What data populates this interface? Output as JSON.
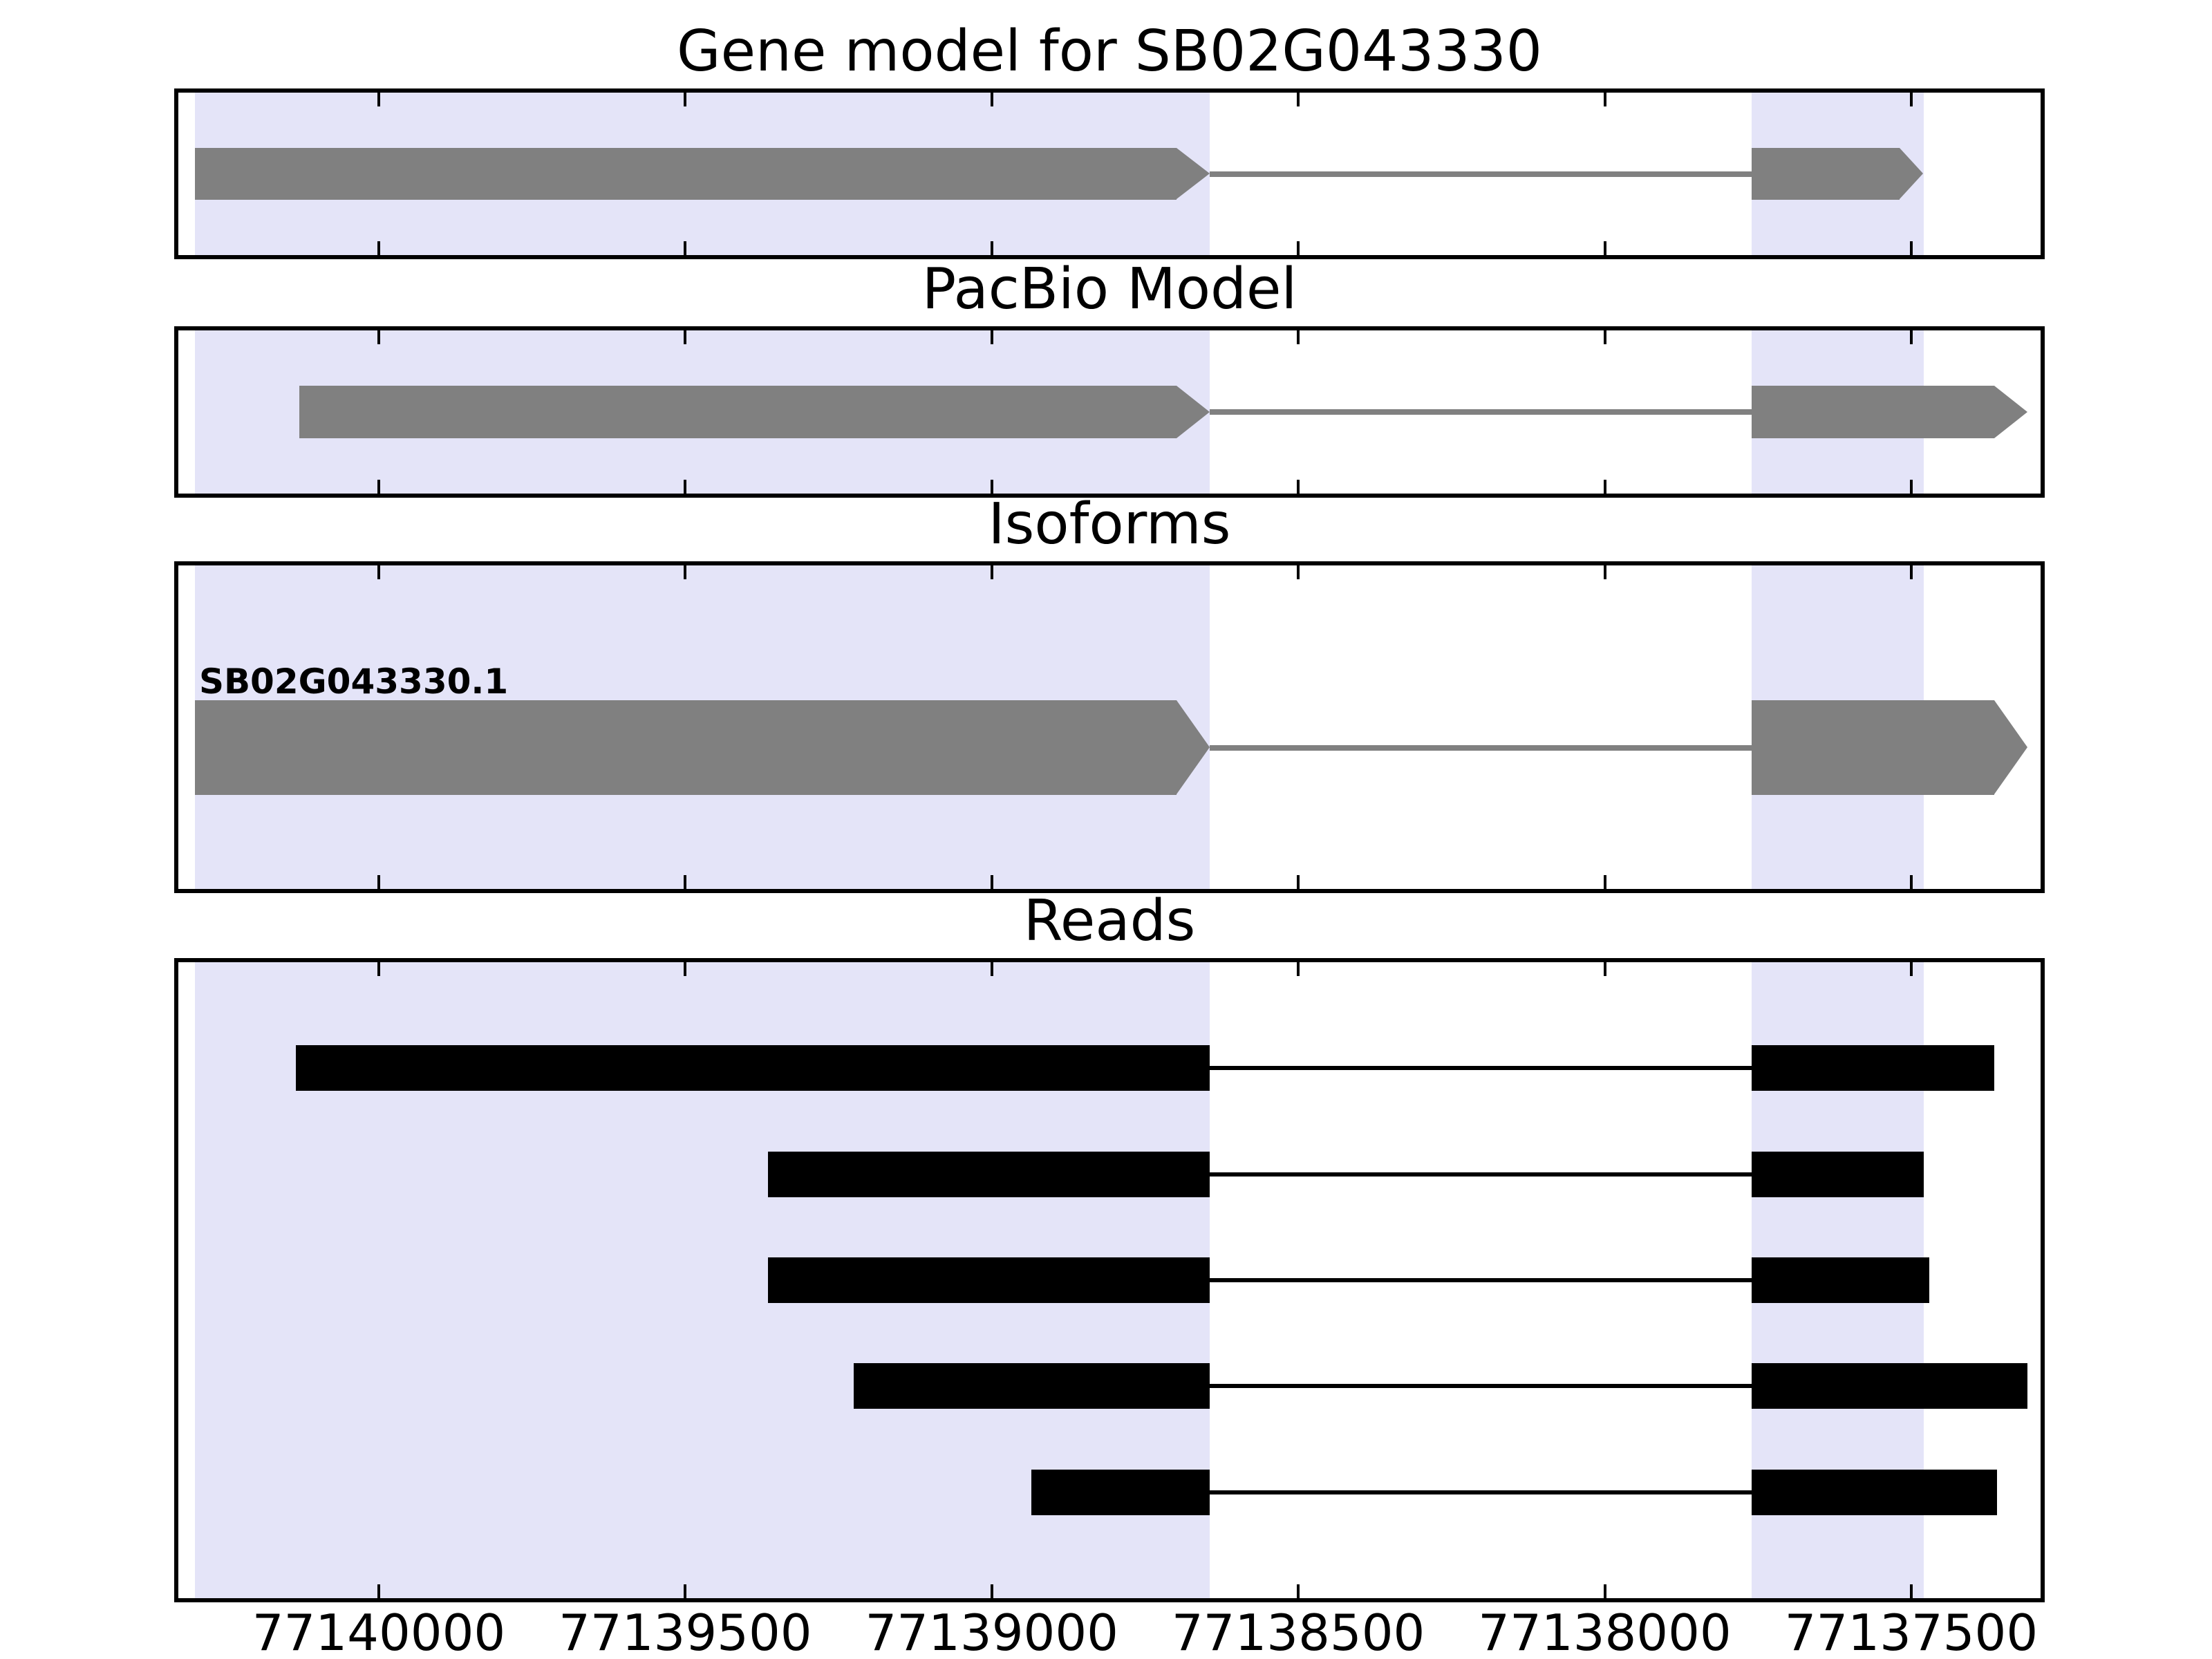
{
  "figure_titles": {
    "gene_model": "Gene model for SB02G043330",
    "pacbio": "PacBio Model",
    "isoforms": "Isoforms",
    "reads": "Reads"
  },
  "colors": {
    "highlight_band": "#e4e4f8",
    "model_fill": "#808080",
    "model_intron": "#808080",
    "read_fill": "#000000",
    "read_intron": "#000000",
    "axis": "#000000",
    "background": "#ffffff"
  },
  "chart_data": {
    "type": "genomic-tracks",
    "title": "Gene model for SB02G043330",
    "x_axis": {
      "reversed": true,
      "range_left": 77140327,
      "range_right": 77137289,
      "tick_values": [
        77140000,
        77139500,
        77139000,
        77138500,
        77138000,
        77137500
      ],
      "tick_labels": [
        "77140000",
        "77139500",
        "77139000",
        "77138500",
        "77138000",
        "77137500"
      ]
    },
    "highlight_regions": [
      {
        "start": 77140300,
        "end": 77138645
      },
      {
        "start": 77137760,
        "end": 77137480
      }
    ],
    "tracks": [
      {
        "id": "gene_model",
        "title": "Gene model for SB02G043330",
        "kind": "model",
        "features": [
          {
            "label": "",
            "direction": "right",
            "exons": [
              {
                "start": 77140300,
                "end": 77138645
              },
              {
                "start": 77137760,
                "end": 77137480
              }
            ]
          }
        ]
      },
      {
        "id": "pacbio",
        "title": "PacBio Model",
        "kind": "model",
        "features": [
          {
            "label": "",
            "direction": "right",
            "exons": [
              {
                "start": 77140130,
                "end": 77138645
              },
              {
                "start": 77137760,
                "end": 77137310
              }
            ]
          }
        ]
      },
      {
        "id": "isoforms",
        "title": "Isoforms",
        "kind": "model",
        "features": [
          {
            "label": "SB02G043330.1",
            "direction": "right",
            "exons": [
              {
                "start": 77140300,
                "end": 77138645
              },
              {
                "start": 77137760,
                "end": 77137310
              }
            ]
          }
        ]
      },
      {
        "id": "reads",
        "title": "Reads",
        "kind": "reads",
        "reads": [
          {
            "exons": [
              {
                "start": 77140135,
                "end": 77138645
              },
              {
                "start": 77137760,
                "end": 77137365
              }
            ]
          },
          {
            "exons": [
              {
                "start": 77139365,
                "end": 77138645
              },
              {
                "start": 77137760,
                "end": 77137480
              }
            ]
          },
          {
            "exons": [
              {
                "start": 77139365,
                "end": 77138645
              },
              {
                "start": 77137760,
                "end": 77137470
              }
            ]
          },
          {
            "exons": [
              {
                "start": 77139225,
                "end": 77138645
              },
              {
                "start": 77137760,
                "end": 77137310
              }
            ]
          },
          {
            "exons": [
              {
                "start": 77138935,
                "end": 77138645
              },
              {
                "start": 77137760,
                "end": 77137360
              }
            ]
          }
        ]
      }
    ]
  }
}
